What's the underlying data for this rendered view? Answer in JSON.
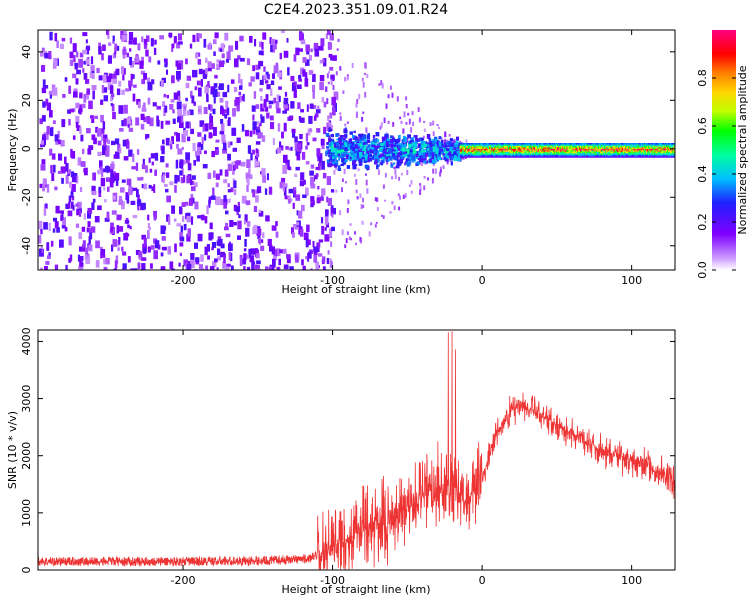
{
  "title": "C2E4.2023.351.09.01.R24",
  "chart_data": [
    {
      "type": "heatmap",
      "xlabel": "Height of straight line (km)",
      "ylabel": "Frequency (Hz)",
      "xlim": [
        -297,
        129
      ],
      "ylim": [
        -50,
        49
      ],
      "xticks": [
        -200,
        -100,
        0,
        100
      ],
      "yticks": [
        -40,
        -20,
        0,
        20,
        40
      ],
      "colorbar": {
        "label": "Normalized spectral amplitude",
        "range": [
          0,
          1
        ],
        "ticks": [
          0,
          0.2,
          0.4,
          0.6,
          0.8
        ],
        "colors": [
          "#ffffff",
          "#cc99ff",
          "#7f00ff",
          "#2020ff",
          "#00bfff",
          "#00ff9f",
          "#00ff00",
          "#bfff00",
          "#ffd700",
          "#ff7f00",
          "#ff0000",
          "#ff007f"
        ]
      },
      "regions": [
        {
          "name": "noise",
          "x_range": [
            -297,
            -105
          ],
          "f_range": [
            -50,
            49
          ],
          "amplitude": 0.1
        },
        {
          "name": "transition",
          "x_range": [
            -105,
            -15
          ],
          "f_range": [
            -10,
            10
          ],
          "amplitude": 0.35
        },
        {
          "name": "signal-band",
          "x_range": [
            -15,
            129
          ],
          "f_range": [
            -3,
            3
          ],
          "amplitude": 0.9
        }
      ]
    },
    {
      "type": "line",
      "xlabel": "Height of straight line (km)",
      "ylabel": "SNR (10 * v/v)",
      "xlim": [
        -297,
        129
      ],
      "ylim": [
        0,
        4200
      ],
      "xticks": [
        -200,
        -100,
        0,
        100
      ],
      "yticks": [
        0,
        1000,
        2000,
        3000,
        4000
      ],
      "color": "#ee3333",
      "series": [
        {
          "x": [
            -297,
            -250,
            -200,
            -150,
            -115,
            -100,
            -80,
            -60,
            -40,
            -20,
            -10,
            0,
            10,
            20,
            25,
            40,
            60,
            80,
            100,
            120,
            129
          ],
          "y": [
            150,
            150,
            150,
            160,
            200,
            400,
            700,
            900,
            1300,
            1500,
            1200,
            1600,
            2400,
            2800,
            2900,
            2700,
            2400,
            2100,
            1900,
            1700,
            1550
          ]
        }
      ]
    }
  ]
}
